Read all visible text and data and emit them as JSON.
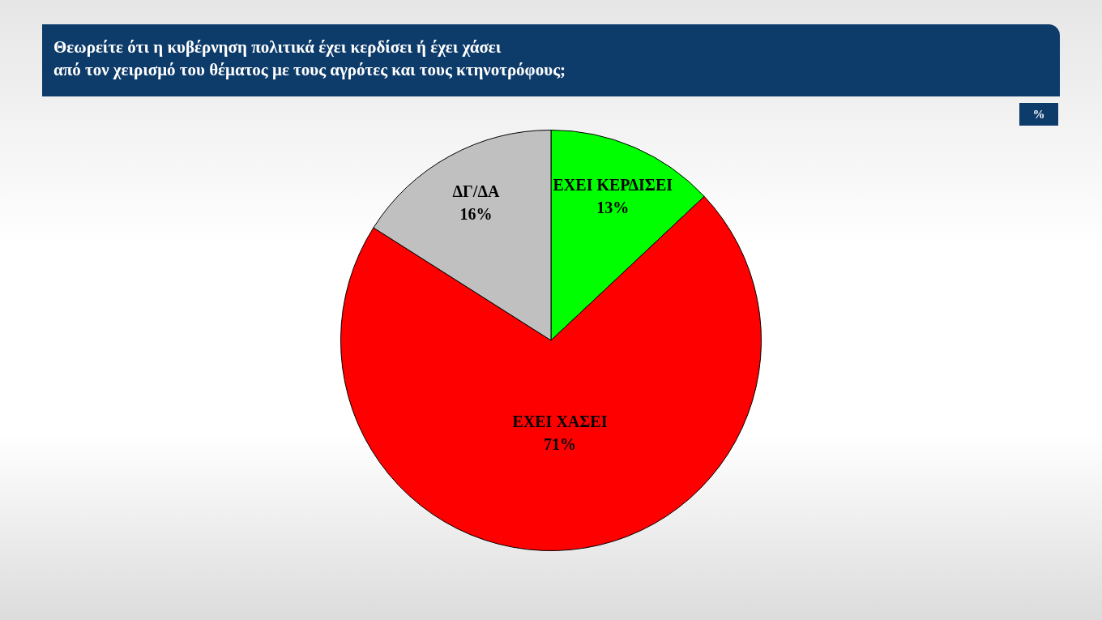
{
  "chart_data": {
    "type": "pie",
    "title": "Θεωρείτε ότι η κυβέρνηση πολιτικά έχει κερδίσει ή έχει χάσει\nαπό τον χειρισμό του θέματος με τους αγρότες και τους κτηνοτρόφους;",
    "categories": [
      "ΕΧΕΙ ΚΕΡΔΙΣΕΙ",
      "ΕΧΕΙ ΧΑΣΕΙ",
      "ΔΓ/ΔΑ"
    ],
    "values": [
      13,
      71,
      16
    ],
    "value_labels": [
      "13%",
      "71%",
      "16%"
    ],
    "colors": [
      "#00ff00",
      "#ff0000",
      "#c0c0c0"
    ],
    "annotations": [
      "%"
    ],
    "legend": false
  }
}
